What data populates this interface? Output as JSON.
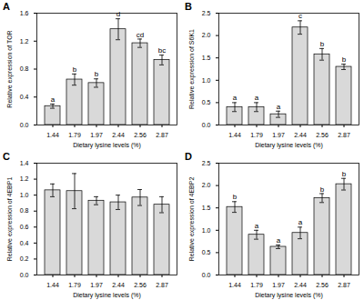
{
  "chart_data": [
    {
      "type": "bar",
      "panel": "A",
      "x_label": "Dietary lysine levels (%)",
      "y_label": "Relative expression of TOR",
      "categories": [
        "1.44",
        "1.79",
        "1.97",
        "2.44",
        "2.56",
        "2.87"
      ],
      "values": [
        0.27,
        0.65,
        0.6,
        1.37,
        1.17,
        0.93
      ],
      "errors": [
        0.03,
        0.08,
        0.06,
        0.15,
        0.06,
        0.07
      ],
      "significance_letters": [
        "a",
        "b",
        "b",
        "d",
        "cd",
        "bc"
      ],
      "color": "#d9d9d9",
      "ylim": [
        0,
        1.6
      ],
      "yticks": [
        {
          "value": 0,
          "label": "0.0"
        },
        0.4,
        0.8,
        1.2,
        1.6
      ]
    },
    {
      "type": "bar",
      "panel": "B",
      "x_label": "Dietary lysine levels (%)",
      "y_label": "Relative expression of S6K1",
      "categories": [
        "1.44",
        "1.79",
        "1.97",
        "2.44",
        "2.56",
        "2.87"
      ],
      "values": [
        0.4,
        0.4,
        0.24,
        2.18,
        1.58,
        1.3
      ],
      "errors": [
        0.1,
        0.1,
        0.07,
        0.15,
        0.13,
        0.06
      ],
      "significance_letters": [
        "a",
        "a",
        "a",
        "c",
        "b",
        "b"
      ],
      "color": "#d9d9d9",
      "ylim": [
        0,
        2.5
      ],
      "yticks": [
        {
          "value": 0,
          "label": "0.0"
        },
        0.5,
        {
          "value": 1,
          "label": "1.0"
        },
        1.5,
        {
          "value": 2,
          "label": "2.0"
        },
        2.5
      ]
    },
    {
      "type": "bar",
      "panel": "C",
      "x_label": "Dietary lysine levels (%)",
      "y_label": "Relative expression of 4EBP1",
      "categories": [
        "1.44",
        "1.79",
        "1.97",
        "2.44",
        "2.56",
        "2.87"
      ],
      "values": [
        1.06,
        1.05,
        0.93,
        0.91,
        0.97,
        0.88
      ],
      "errors": [
        0.08,
        0.22,
        0.05,
        0.09,
        0.1,
        0.1
      ],
      "color": "#d9d9d9",
      "ylim": [
        0,
        1.4
      ],
      "yticks": [
        {
          "value": 0,
          "label": "0.0"
        },
        0.2,
        0.4,
        0.6,
        0.8,
        {
          "value": 1,
          "label": "1.0"
        },
        1.2,
        1.4
      ]
    },
    {
      "type": "bar",
      "panel": "D",
      "x_label": "Dietary lysine levels (%)",
      "y_label": "Relative expression of 4EBP2",
      "categories": [
        "1.44",
        "1.79",
        "1.97",
        "2.44",
        "2.56",
        "2.87"
      ],
      "values": [
        1.52,
        0.9,
        0.63,
        0.94,
        1.72,
        2.03
      ],
      "errors": [
        0.12,
        0.1,
        0.04,
        0.13,
        0.1,
        0.13
      ],
      "significance_letters": [
        "b",
        "a",
        "a",
        "a",
        "b",
        "b"
      ],
      "color": "#d9d9d9",
      "ylim": [
        0,
        2.5
      ],
      "yticks": [
        {
          "value": 0,
          "label": "0.0"
        },
        0.5,
        {
          "value": 1,
          "label": "1.0"
        },
        1.5,
        {
          "value": 2,
          "label": "2.0"
        },
        2.5
      ]
    }
  ]
}
